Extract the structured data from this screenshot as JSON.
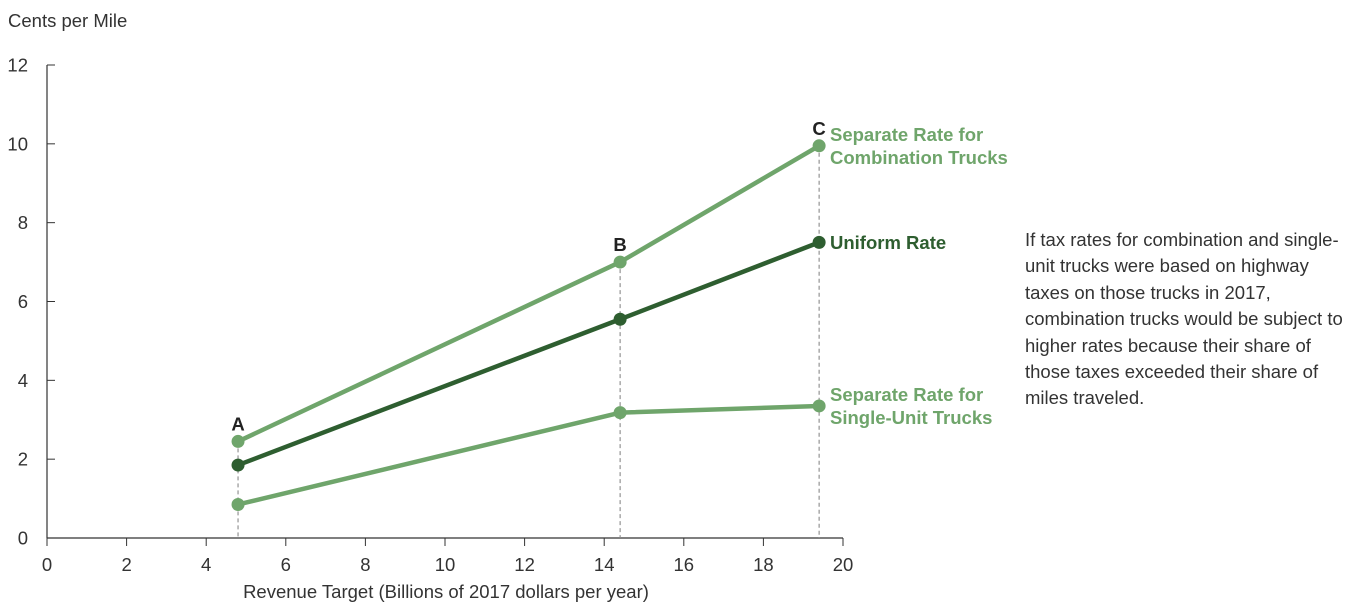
{
  "chart_data": {
    "type": "line",
    "ylabel": "Cents per Mile",
    "xlabel": "Revenue Target (Billions of 2017 dollars per year)",
    "xlim": [
      0,
      20
    ],
    "ylim": [
      0,
      12
    ],
    "x_ticks": [
      "0",
      "2",
      "4",
      "6",
      "8",
      "10",
      "12",
      "14",
      "16",
      "18",
      "20"
    ],
    "y_ticks": [
      "0",
      "2",
      "4",
      "6",
      "8",
      "10",
      "12"
    ],
    "grid": false,
    "x": [
      4.8,
      14.4,
      19.4
    ],
    "point_labels": [
      "A",
      "B",
      "C"
    ],
    "series": [
      {
        "name": "Separate Rate for Combination Trucks",
        "name_lines": [
          "Separate Rate for",
          "Combination Trucks"
        ],
        "values": [
          2.45,
          7.0,
          9.95
        ],
        "color": "#6fa56b"
      },
      {
        "name": "Uniform Rate",
        "name_lines": [
          "Uniform Rate"
        ],
        "values": [
          1.85,
          5.55,
          7.5
        ],
        "color": "#2e5e30"
      },
      {
        "name": "Separate Rate for Single-Unit Trucks",
        "name_lines": [
          "Separate Rate for",
          "Single-Unit Trucks"
        ],
        "values": [
          0.85,
          3.18,
          3.35
        ],
        "color": "#6fa56b"
      }
    ],
    "annotation": "If tax rates for combination and single-unit trucks were based on highway taxes on those trucks in 2017, combination trucks would be subject to higher rates because their share of those taxes exceeded their share of miles traveled."
  }
}
